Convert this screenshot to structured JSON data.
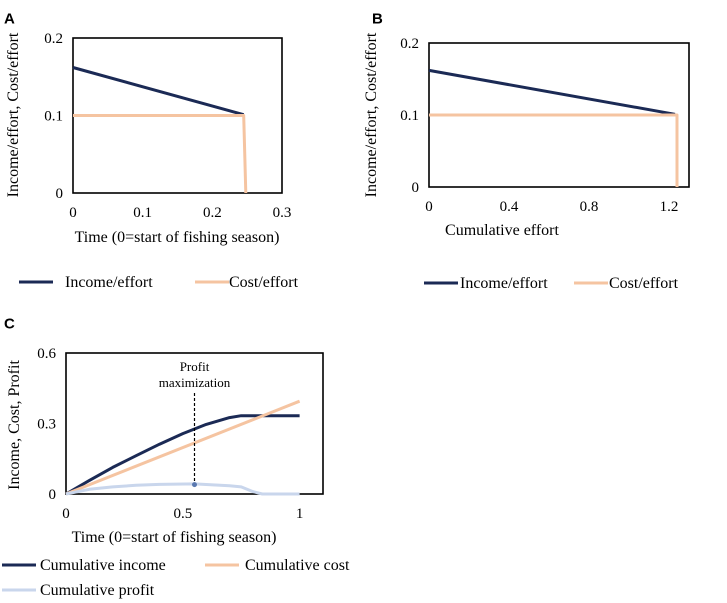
{
  "colors": {
    "income": "#1b2a55",
    "cost": "#f5c4a1",
    "profit": "#c9d6ec",
    "frame": "#000000"
  },
  "chart_data": [
    {
      "id": "A",
      "panel_label": "A",
      "type": "line",
      "xlabel": "Time (0=start of fishing season)",
      "ylabel": "Income/effort, Cost/effort",
      "xlim": [
        0,
        0.3
      ],
      "ylim": [
        0,
        0.2
      ],
      "xticks": [
        0,
        0.1,
        0.2,
        0.3
      ],
      "xtick_labels": [
        "0",
        "0.1",
        "0.2",
        "0.3"
      ],
      "yticks": [
        0,
        0.1,
        0.2
      ],
      "ytick_labels": [
        "0",
        "0.1",
        "0.2"
      ],
      "legend": [
        "Income/effort",
        "Cost/effort"
      ],
      "legend_position": "bottom",
      "series": [
        {
          "name": "Income/effort",
          "color_key": "income",
          "points": [
            [
              0,
              0.162
            ],
            [
              0.245,
              0.101
            ]
          ]
        },
        {
          "name": "Cost/effort",
          "color_key": "cost",
          "points": [
            [
              0,
              0.1
            ],
            [
              0.245,
              0.1
            ],
            [
              0.248,
              0
            ]
          ]
        }
      ]
    },
    {
      "id": "B",
      "panel_label": "B",
      "type": "line",
      "xlabel": "Cumulative effort",
      "ylabel": "Income/effort, Cost/effort",
      "xlim": [
        0,
        1.3
      ],
      "ylim": [
        0,
        0.2
      ],
      "xticks": [
        0,
        0.4,
        0.8,
        1.2
      ],
      "xtick_labels": [
        "0",
        "0.4",
        "0.8",
        "1.2"
      ],
      "yticks": [
        0,
        0.1,
        0.2
      ],
      "ytick_labels": [
        "0",
        "0.1",
        "0.2"
      ],
      "legend": [
        "Income/effort",
        "Cost/effort"
      ],
      "legend_position": "bottom",
      "series": [
        {
          "name": "Income/effort",
          "color_key": "income",
          "points": [
            [
              0,
              0.162
            ],
            [
              1.23,
              0.101
            ]
          ]
        },
        {
          "name": "Cost/effort",
          "color_key": "cost",
          "points": [
            [
              0,
              0.1
            ],
            [
              1.24,
              0.1
            ],
            [
              1.24,
              0
            ]
          ]
        }
      ]
    },
    {
      "id": "C",
      "panel_label": "C",
      "type": "line",
      "xlabel": "Time (0=start of fishing season)",
      "ylabel": "Income, Cost, Profit",
      "xlim": [
        0,
        1.1
      ],
      "ylim": [
        0,
        0.6
      ],
      "xticks": [
        0,
        0.5,
        1
      ],
      "xtick_labels": [
        "0",
        "0.5",
        "1"
      ],
      "yticks": [
        0,
        0.3,
        0.6
      ],
      "ytick_labels": [
        "0",
        "0.3",
        "0.6"
      ],
      "legend": [
        "Cumulative income",
        "Cumulative cost",
        "Cumulative profit"
      ],
      "legend_position": "bottom",
      "annotation": {
        "text_line1": "Profit",
        "text_line2": "maximization",
        "x": 0.55,
        "y_from": 0.04,
        "y_to": 0.43
      },
      "series": [
        {
          "name": "Cumulative income",
          "color_key": "income",
          "points": [
            [
              0,
              0
            ],
            [
              0.1,
              0.058
            ],
            [
              0.2,
              0.113
            ],
            [
              0.3,
              0.163
            ],
            [
              0.4,
              0.212
            ],
            [
              0.5,
              0.257
            ],
            [
              0.6,
              0.296
            ],
            [
              0.7,
              0.325
            ],
            [
              0.75,
              0.333
            ],
            [
              1.0,
              0.333
            ]
          ]
        },
        {
          "name": "Cumulative cost",
          "color_key": "cost",
          "points": [
            [
              0,
              0
            ],
            [
              1.0,
              0.395
            ]
          ]
        },
        {
          "name": "Cumulative profit",
          "color_key": "profit",
          "points": [
            [
              0,
              0
            ],
            [
              0.1,
              0.02
            ],
            [
              0.2,
              0.03
            ],
            [
              0.3,
              0.037
            ],
            [
              0.4,
              0.041
            ],
            [
              0.55,
              0.043
            ],
            [
              0.7,
              0.035
            ],
            [
              0.75,
              0.03
            ],
            [
              0.8,
              0.01
            ],
            [
              0.84,
              0
            ],
            [
              1.0,
              0
            ]
          ]
        }
      ]
    }
  ]
}
